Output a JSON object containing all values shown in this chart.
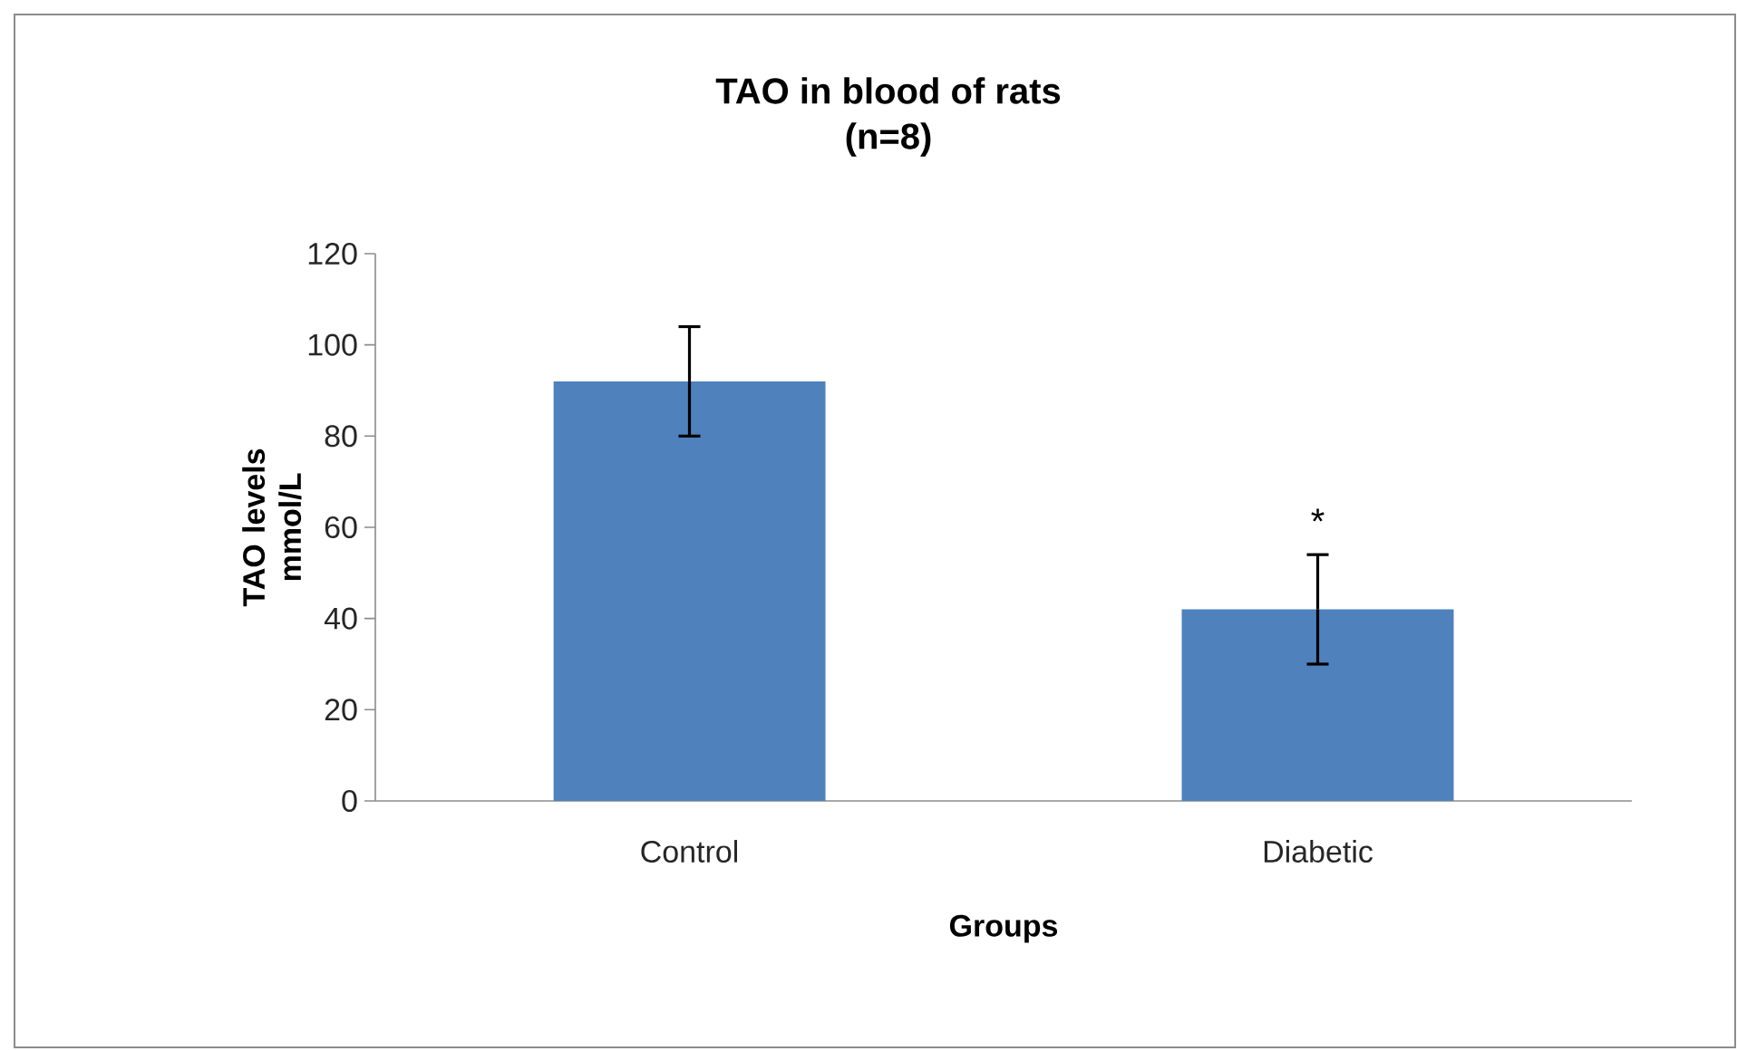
{
  "chart_data": {
    "type": "bar",
    "title": "TAO in blood of rats",
    "subtitle": "(n=8)",
    "xlabel": "Groups",
    "ylabel": "TAO levels mmol/L",
    "categories": [
      "Control",
      "Diabetic"
    ],
    "values": [
      92,
      42
    ],
    "errors": [
      12,
      12
    ],
    "color": "#4f81bd",
    "ylim": [
      0,
      120
    ],
    "yticks": [
      0,
      20,
      40,
      60,
      80,
      100,
      120
    ],
    "annotations": [
      "*"
    ],
    "grid": false
  }
}
